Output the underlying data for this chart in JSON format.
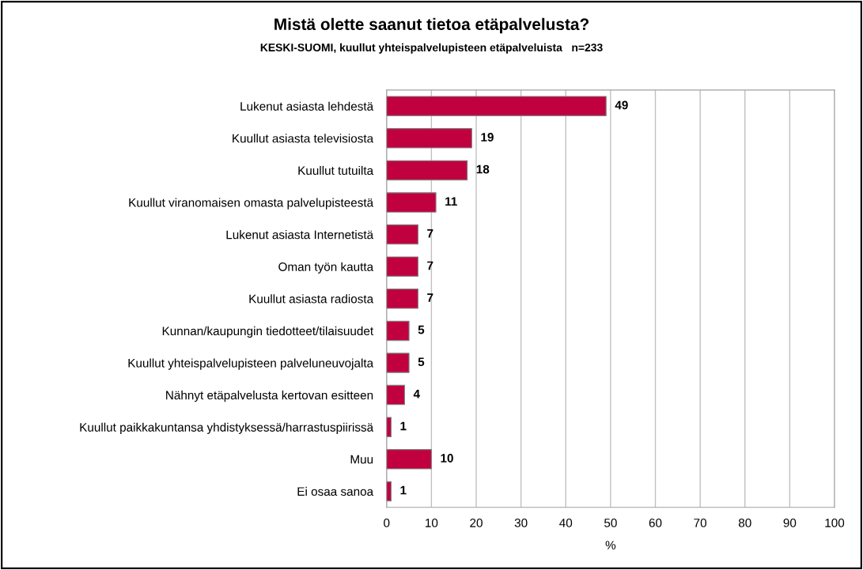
{
  "chart_data": {
    "type": "bar",
    "orientation": "horizontal",
    "title": "Mistä olette saanut tietoa etäpalvelusta?",
    "subtitle": "KESKI-SUOMI, kuullut yhteispalvelupisteen etäpalveluista   n=233",
    "xlabel": "%",
    "categories": [
      "Lukenut asiasta lehdestä",
      "Kuullut asiasta televisiosta",
      "Kuullut tutuilta",
      "Kuullut viranomaisen omasta palvelupisteestä",
      "Lukenut asiasta Internetistä",
      "Oman työn kautta",
      "Kuullut asiasta radiosta",
      "Kunnan/kaupungin tiedotteet/tilaisuudet",
      "Kuullut yhteispalvelupisteen palveluneuvojalta",
      "Nähnyt etäpalvelusta kertovan esitteen",
      "Kuullut paikkakuntansa yhdistyksessä/harrastuspiirissä",
      "Muu",
      "Ei osaa sanoa"
    ],
    "values": [
      49,
      19,
      18,
      11,
      7,
      7,
      7,
      5,
      5,
      4,
      1,
      10,
      1
    ],
    "color": "#c0003f",
    "xlim": [
      0,
      100
    ],
    "xticks": [
      0,
      10,
      20,
      30,
      40,
      50,
      60,
      70,
      80,
      90,
      100
    ],
    "grid": "x",
    "data_labels": true
  }
}
